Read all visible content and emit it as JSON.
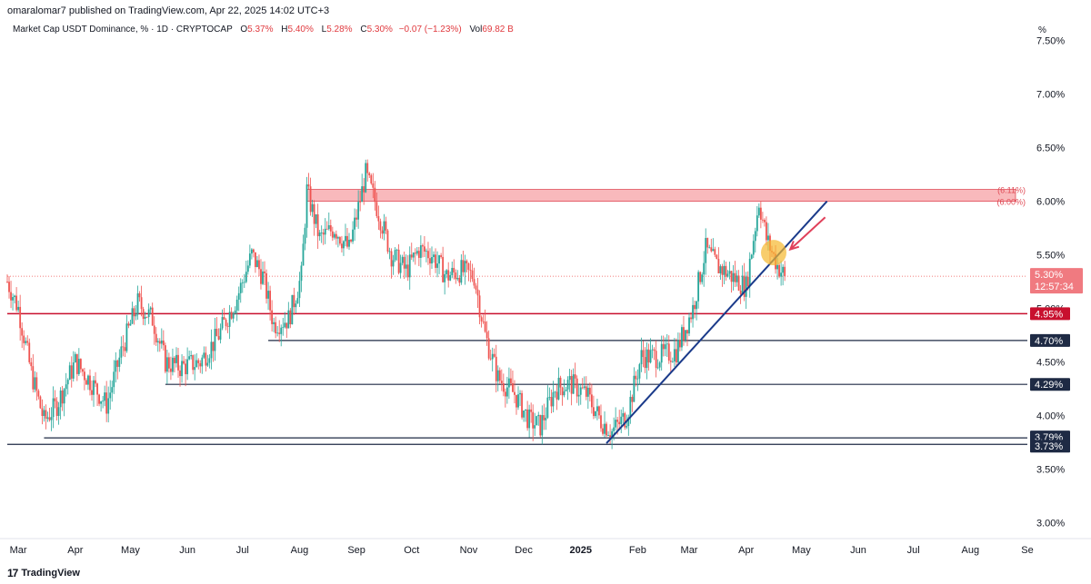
{
  "header": {
    "published": "omaralomar7 published on TradingView.com, Apr 22, 2025 14:02 UTC+3",
    "symbol": "Market Cap USDT Dominance, % · 1D · CRYPTOCAP",
    "open_label": "O",
    "open": "5.37%",
    "high_label": "H",
    "high": "5.40%",
    "low_label": "L",
    "low": "5.28%",
    "close_label": "C",
    "close": "5.30%",
    "change": "−0.07 (−1.23%)",
    "vol_label": "Vol",
    "vol": "69.82 B"
  },
  "footer": {
    "brand": "TradingView",
    "logo": "17"
  },
  "colors": {
    "up": "#26a69a",
    "down": "#ef5350",
    "navy": "#1e2a44",
    "red_line": "#c8102e",
    "zone": "#f7a1a6",
    "trendline": "#1a3a8a",
    "arrow": "#e0405a",
    "circle": "#f5b82e"
  },
  "chart_data": {
    "type": "candlestick",
    "title": "Market Cap USDT Dominance, % · 1D · CRYPTOCAP",
    "ylabel": "%",
    "y_unit_label": "%",
    "ylim": [
      2.85,
      7.65
    ],
    "y_ticks": [
      "7.50%",
      "7.00%",
      "6.50%",
      "6.00%",
      "5.50%",
      "5.00%",
      "4.50%",
      "4.00%",
      "3.50%",
      "3.00%"
    ],
    "y_tick_values": [
      7.5,
      7.0,
      6.5,
      6.0,
      5.5,
      5.0,
      4.5,
      4.0,
      3.5,
      3.0
    ],
    "x_ticks": [
      "Mar",
      "Apr",
      "May",
      "Jun",
      "Jul",
      "Aug",
      "Sep",
      "Oct",
      "Nov",
      "Dec",
      "2025",
      "Feb",
      "Mar",
      "Apr",
      "May",
      "Jun",
      "Jul",
      "Aug",
      "Se"
    ],
    "x_tick_dates": [
      "2024-03-01",
      "2024-04-01",
      "2024-05-01",
      "2024-06-01",
      "2024-07-01",
      "2024-08-01",
      "2024-09-01",
      "2024-10-01",
      "2024-11-01",
      "2024-12-01",
      "2025-01-01",
      "2025-02-01",
      "2025-03-01",
      "2025-04-01",
      "2025-05-01",
      "2025-06-01",
      "2025-07-01",
      "2025-08-01",
      "2025-09-01"
    ],
    "x_range": [
      "2024-02-24",
      "2025-09-01"
    ],
    "current_price": {
      "label": "5.30%",
      "value": 5.3,
      "countdown": "12:57:34"
    },
    "resistance_zone": {
      "low": 6.0,
      "high": 6.11,
      "start": "2024-08-05",
      "end": "2025-05-31",
      "label_low": "(6.00%)",
      "label_high": "(6.11%)"
    },
    "horizontal_levels": [
      {
        "value": 4.95,
        "label": "4.95%",
        "start": "2024-02-24",
        "color": "red"
      },
      {
        "value": 4.7,
        "label": "4.70%",
        "start": "2024-07-15",
        "color": "navy"
      },
      {
        "value": 4.29,
        "label": "4.29%",
        "start": "2024-05-20",
        "color": "navy"
      },
      {
        "value": 3.79,
        "label": "3.79%",
        "start": "2024-03-15",
        "color": "navy"
      },
      {
        "value": 3.73,
        "label": "3.73%",
        "start": "2024-02-24",
        "color": "navy"
      }
    ],
    "trendline": {
      "start": [
        "2025-01-15",
        3.74
      ],
      "end": [
        "2025-05-15",
        6.0
      ]
    },
    "highlight_circle": {
      "date": "2025-04-16",
      "value": 5.52
    },
    "annotation_arrow": {
      "from": [
        "2025-05-14",
        5.85
      ],
      "to": [
        "2025-04-25",
        5.55
      ]
    },
    "series_anchors": [
      [
        "2024-02-24",
        5.25
      ],
      [
        "2024-03-01",
        5.0
      ],
      [
        "2024-03-08",
        4.4
      ],
      [
        "2024-03-15",
        3.95
      ],
      [
        "2024-03-22",
        4.1
      ],
      [
        "2024-04-01",
        4.5
      ],
      [
        "2024-04-10",
        4.3
      ],
      [
        "2024-04-18",
        4.1
      ],
      [
        "2024-04-27",
        4.65
      ],
      [
        "2024-05-05",
        5.05
      ],
      [
        "2024-05-13",
        4.9
      ],
      [
        "2024-05-20",
        4.5
      ],
      [
        "2024-05-28",
        4.45
      ],
      [
        "2024-06-08",
        4.5
      ],
      [
        "2024-06-18",
        4.75
      ],
      [
        "2024-06-28",
        5.1
      ],
      [
        "2024-07-06",
        5.5
      ],
      [
        "2024-07-12",
        5.3
      ],
      [
        "2024-07-18",
        4.85
      ],
      [
        "2024-07-26",
        4.9
      ],
      [
        "2024-08-02",
        5.3
      ],
      [
        "2024-08-05",
        6.1
      ],
      [
        "2024-08-12",
        5.65
      ],
      [
        "2024-08-20",
        5.75
      ],
      [
        "2024-08-28",
        5.55
      ],
      [
        "2024-09-06",
        6.25
      ],
      [
        "2024-09-12",
        5.95
      ],
      [
        "2024-09-20",
        5.5
      ],
      [
        "2024-09-28",
        5.35
      ],
      [
        "2024-10-05",
        5.55
      ],
      [
        "2024-10-12",
        5.5
      ],
      [
        "2024-10-20",
        5.3
      ],
      [
        "2024-10-28",
        5.35
      ],
      [
        "2024-11-04",
        5.3
      ],
      [
        "2024-11-10",
        4.75
      ],
      [
        "2024-11-17",
        4.35
      ],
      [
        "2024-11-26",
        4.2
      ],
      [
        "2024-12-04",
        3.95
      ],
      [
        "2024-12-10",
        3.9
      ],
      [
        "2024-12-18",
        4.25
      ],
      [
        "2024-12-26",
        4.3
      ],
      [
        "2025-01-04",
        4.2
      ],
      [
        "2025-01-12",
        3.95
      ],
      [
        "2025-01-18",
        3.85
      ],
      [
        "2025-01-26",
        4.0
      ],
      [
        "2025-02-03",
        4.55
      ],
      [
        "2025-02-12",
        4.55
      ],
      [
        "2025-02-22",
        4.6
      ],
      [
        "2025-03-03",
        5.0
      ],
      [
        "2025-03-10",
        5.55
      ],
      [
        "2025-03-16",
        5.4
      ],
      [
        "2025-03-24",
        5.3
      ],
      [
        "2025-04-01",
        5.2
      ],
      [
        "2025-04-08",
        6.0
      ],
      [
        "2025-04-12",
        5.65
      ],
      [
        "2025-04-18",
        5.4
      ],
      [
        "2025-04-22",
        5.3
      ]
    ]
  }
}
